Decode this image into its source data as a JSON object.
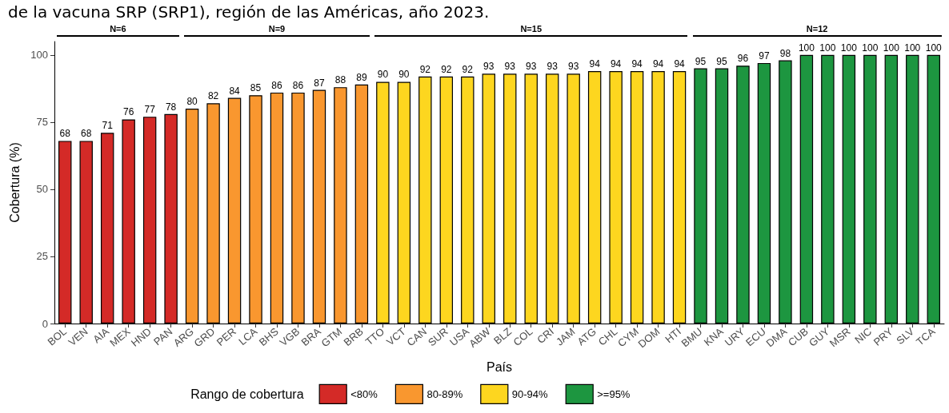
{
  "chart_data": {
    "type": "bar",
    "title": "de la vacuna SRP (SRP1), región de las Américas, año 2023.",
    "xlabel": "País",
    "ylabel": "Cobertura (%)",
    "legend_title": "Rango de cobertura",
    "legend": "bottom",
    "grid": false,
    "data_labels": true,
    "annotations": [
      "N=6",
      "N=9",
      "N=15",
      "N=12"
    ],
    "categories": [
      "BOL",
      "VEN",
      "AIA",
      "MEX",
      "HND",
      "PAN",
      "ARG",
      "GRD",
      "PER",
      "LCA",
      "BHS",
      "VGB",
      "BRA",
      "GTM",
      "BRB",
      "TTO",
      "VCT",
      "CAN",
      "SUR",
      "USA",
      "ABW",
      "BLZ",
      "COL",
      "CRI",
      "JAM",
      "ATG",
      "CHL",
      "CYM",
      "DOM",
      "HTI",
      "BMU",
      "KNA",
      "URY",
      "ECU",
      "DMA",
      "CUB",
      "GUY",
      "MSR",
      "NIC",
      "PRY",
      "SLV",
      "TCA"
    ],
    "ylim": [
      0,
      105
    ],
    "yticks": [
      0,
      25,
      50,
      75,
      100
    ],
    "series": [
      {
        "name": "<80%",
        "color": "#d42a27",
        "values": [
          68,
          68,
          71,
          76,
          77,
          78,
          null,
          null,
          null,
          null,
          null,
          null,
          null,
          null,
          null,
          null,
          null,
          null,
          null,
          null,
          null,
          null,
          null,
          null,
          null,
          null,
          null,
          null,
          null,
          null,
          null,
          null,
          null,
          null,
          null,
          null,
          null,
          null,
          null,
          null,
          null,
          null
        ]
      },
      {
        "name": "80-89%",
        "color": "#f9972f",
        "values": [
          null,
          null,
          null,
          null,
          null,
          null,
          80,
          82,
          84,
          85,
          86,
          86,
          87,
          88,
          89,
          null,
          null,
          null,
          null,
          null,
          null,
          null,
          null,
          null,
          null,
          null,
          null,
          null,
          null,
          null,
          null,
          null,
          null,
          null,
          null,
          null,
          null,
          null,
          null,
          null,
          null,
          null
        ]
      },
      {
        "name": "90-94%",
        "color": "#fdd61f",
        "values": [
          null,
          null,
          null,
          null,
          null,
          null,
          null,
          null,
          null,
          null,
          null,
          null,
          null,
          null,
          null,
          90,
          90,
          92,
          92,
          92,
          93,
          93,
          93,
          93,
          93,
          94,
          94,
          94,
          94,
          94,
          null,
          null,
          null,
          null,
          null,
          null,
          null,
          null,
          null,
          null,
          null,
          null
        ]
      },
      {
        "name": ">=95%",
        "color": "#1d9640",
        "values": [
          null,
          null,
          null,
          null,
          null,
          null,
          null,
          null,
          null,
          null,
          null,
          null,
          null,
          null,
          null,
          null,
          null,
          null,
          null,
          null,
          null,
          null,
          null,
          null,
          null,
          null,
          null,
          null,
          null,
          null,
          95,
          95,
          96,
          97,
          98,
          100,
          100,
          100,
          100,
          100,
          100,
          100
        ]
      }
    ]
  }
}
